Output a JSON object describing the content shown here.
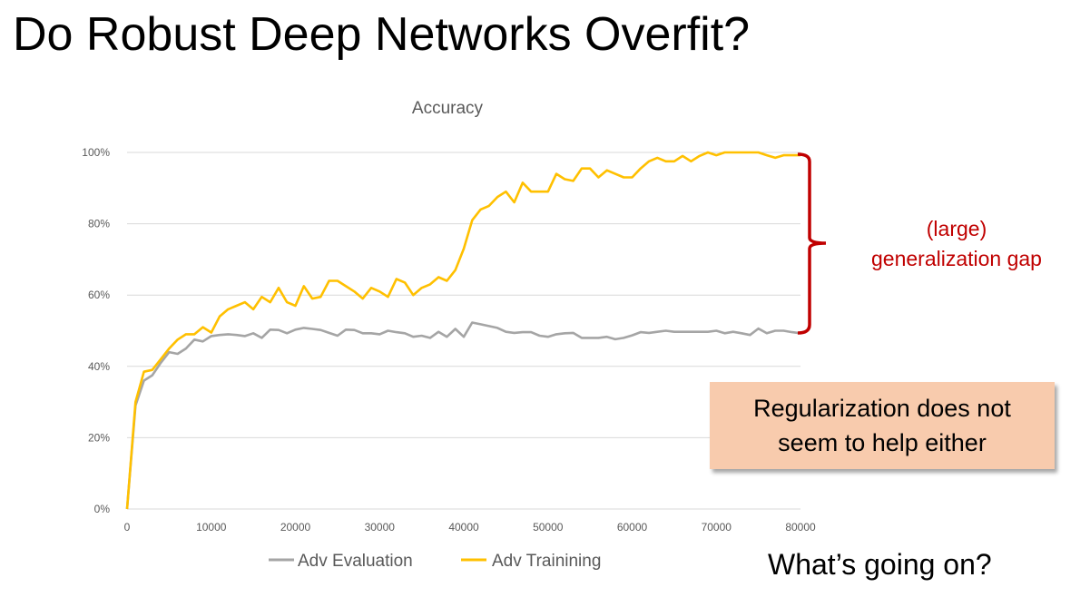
{
  "slide": {
    "title": "Do Robust Deep Networks Overfit?",
    "gap_label_line1": "(large)",
    "gap_label_line2": "generalization gap",
    "callout_line1": "Regularization does not",
    "callout_line2": "seem to help either",
    "question": "What’s going on?"
  },
  "colors": {
    "adv_evaluation": "#a5a5a5",
    "adv_training": "#ffc000",
    "bracket": "#c00000",
    "callout_fill": "#f8cbad",
    "grid": "#d9d9d9"
  },
  "chart_data": {
    "type": "line",
    "title": "Accuracy",
    "xlabel": "",
    "ylabel": "",
    "xlim": [
      0,
      80000
    ],
    "ylim": [
      0,
      100
    ],
    "x_ticks": [
      0,
      10000,
      20000,
      30000,
      40000,
      50000,
      60000,
      70000,
      80000
    ],
    "y_ticks": [
      0,
      20,
      40,
      60,
      80,
      100
    ],
    "y_tick_labels": [
      "0%",
      "20%",
      "40%",
      "60%",
      "80%",
      "100%"
    ],
    "grid": true,
    "legend": "bottom",
    "series": [
      {
        "name": "Adv Evaluation",
        "color": "#a5a5a5",
        "x": [
          0,
          1000,
          2000,
          3000,
          4000,
          5000,
          6000,
          7000,
          8000,
          9000,
          10000,
          11000,
          12000,
          13000,
          14000,
          15000,
          16000,
          17000,
          18000,
          19000,
          20000,
          21000,
          22000,
          23000,
          24000,
          25000,
          26000,
          27000,
          28000,
          29000,
          30000,
          31000,
          32000,
          33000,
          34000,
          35000,
          36000,
          37000,
          38000,
          39000,
          40000,
          41000,
          42000,
          43000,
          44000,
          45000,
          46000,
          47000,
          48000,
          49000,
          50000,
          51000,
          52000,
          53000,
          54000,
          55000,
          56000,
          57000,
          58000,
          59000,
          60000,
          61000,
          62000,
          63000,
          64000,
          65000,
          66000,
          67000,
          68000,
          69000,
          70000,
          71000,
          72000,
          73000,
          74000,
          75000,
          76000,
          77000,
          78000,
          79000,
          80000
        ],
        "values": [
          0,
          29,
          36,
          37.5,
          41,
          44,
          43.5,
          45,
          47.5,
          47,
          48.5,
          48.8,
          49,
          48.8,
          48.5,
          49.3,
          48,
          50.3,
          50.2,
          49.3,
          50.3,
          50.8,
          50.5,
          50.2,
          49.4,
          48.6,
          50.3,
          50.2,
          49.3,
          49.3,
          49,
          50,
          49.6,
          49.3,
          48.3,
          48.6,
          48,
          49.7,
          48.3,
          50.5,
          48.3,
          52.3,
          51.8,
          51.3,
          50.8,
          49.7,
          49.4,
          49.6,
          49.6,
          48.6,
          48.3,
          49,
          49.3,
          49.4,
          48,
          48,
          48,
          48.3,
          47.6,
          48,
          48.7,
          49.6,
          49.4,
          49.7,
          50,
          49.7,
          49.7,
          49.7,
          49.7,
          49.7,
          50,
          49.3,
          49.7,
          49.3,
          48.8,
          50.6,
          49.3,
          50,
          50,
          49.6,
          49.3
        ]
      },
      {
        "name": "Adv Trainining",
        "color": "#ffc000",
        "x": [
          0,
          1000,
          2000,
          3000,
          4000,
          5000,
          6000,
          7000,
          8000,
          9000,
          10000,
          11000,
          12000,
          13000,
          14000,
          15000,
          16000,
          17000,
          18000,
          19000,
          20000,
          21000,
          22000,
          23000,
          24000,
          25000,
          26000,
          27000,
          28000,
          29000,
          30000,
          31000,
          32000,
          33000,
          34000,
          35000,
          36000,
          37000,
          38000,
          39000,
          40000,
          41000,
          42000,
          43000,
          44000,
          45000,
          46000,
          47000,
          48000,
          49000,
          50000,
          51000,
          52000,
          53000,
          54000,
          55000,
          56000,
          57000,
          58000,
          59000,
          60000,
          61000,
          62000,
          63000,
          64000,
          65000,
          66000,
          67000,
          68000,
          69000,
          70000,
          71000,
          72000,
          73000,
          74000,
          75000,
          76000,
          77000,
          78000,
          79000,
          80000
        ],
        "values": [
          0,
          30,
          38.5,
          39,
          42,
          45,
          47.5,
          49,
          49,
          51,
          49.5,
          54,
          56,
          57,
          58,
          56,
          59.5,
          58,
          62,
          58,
          57,
          62.5,
          59,
          59.5,
          64,
          64,
          62.5,
          61,
          59,
          62,
          61,
          59.5,
          64.5,
          63.5,
          60,
          62,
          63,
          65,
          64,
          67,
          73,
          81,
          84,
          85,
          87.5,
          89,
          86,
          91.5,
          89,
          89,
          89,
          94,
          92.5,
          92,
          95.5,
          95.5,
          93,
          95,
          94,
          93,
          93,
          95.5,
          97.5,
          98.5,
          97.5,
          97.5,
          99,
          97.5,
          99,
          100,
          99.2,
          100,
          100,
          100,
          100,
          100,
          99.2,
          98.5,
          99.2,
          99.2,
          99.2
        ]
      }
    ]
  }
}
